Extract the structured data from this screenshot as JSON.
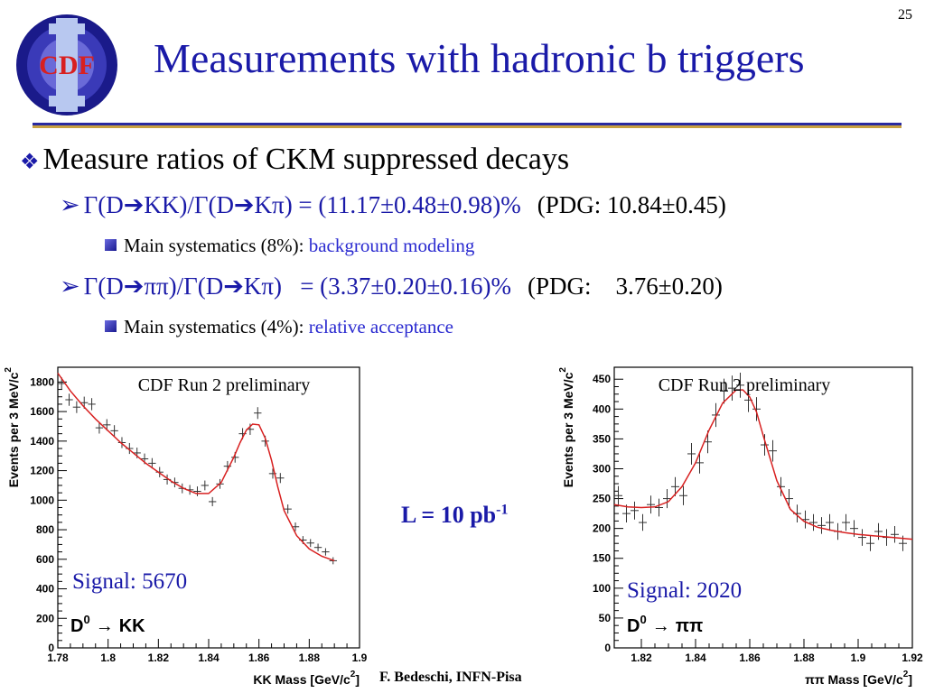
{
  "slide": {
    "page_number": "25",
    "logo_text": "CDF",
    "title": "Measurements with hadronic b triggers",
    "bullet": "Measure ratios of CKM suppressed decays",
    "items": [
      {
        "formula": "Γ(D➔KK)/Γ(D➔Kπ) = (11.17±0.48±0.98)%",
        "pdg": "(PDG: 10.84±0.45)",
        "systematics_label": "Main systematics (8%):",
        "systematics_value": "background modeling"
      },
      {
        "formula": "Γ(D➔ππ)/Γ(D➔Kπ)   = (3.37±0.20±0.16)%",
        "pdg": "(PDG:    3.76±0.20)",
        "systematics_label": "Main systematics (4%):",
        "systematics_value": "relative acceptance"
      }
    ],
    "luminosity": "L = 10 pb",
    "luminosity_exp": "-1",
    "author": "F. Bedeschi, INFN-Pisa"
  },
  "colors": {
    "title_blue": "#1a1aa8",
    "fit_red": "#d82020",
    "highlight_blue": "#2a2ad0"
  },
  "chart_data": [
    {
      "type": "scatter",
      "title": "CDF Run 2 preliminary",
      "xlabel": "KK Mass [GeV/c",
      "xlabel_exp": "2",
      "xlabel_end": "]",
      "ylabel": "Events per 3 MeV/c",
      "ylabel_exp": "2",
      "xlim": [
        1.78,
        1.9
      ],
      "ylim": [
        0,
        1900
      ],
      "xticks": [
        1.78,
        1.8,
        1.82,
        1.84,
        1.86,
        1.88,
        1.9
      ],
      "xtick_labels": [
        "1.78",
        "1.8",
        "1.82",
        "1.84",
        "1.86",
        "1.88",
        "1.9"
      ],
      "yticks": [
        0,
        200,
        400,
        600,
        800,
        1000,
        1200,
        1400,
        1600,
        1800
      ],
      "ytick_labels": [
        "0",
        "200",
        "400",
        "600",
        "800",
        "1000",
        "1200",
        "1400",
        "1600",
        "1800"
      ],
      "signal": "Signal: 5670",
      "decay_particle": "D",
      "decay_sup": "0",
      "decay_arrow": "→",
      "decay_products": "KK",
      "series": [
        {
          "x": [
            1.7815,
            1.7845,
            1.7875,
            1.7905,
            1.7935,
            1.7965,
            1.7995,
            1.8025,
            1.8055,
            1.8085,
            1.8115,
            1.8145,
            1.8175,
            1.8205,
            1.8235,
            1.8265,
            1.8295,
            1.8325,
            1.8355,
            1.8385,
            1.8415,
            1.8445,
            1.8475,
            1.8505,
            1.8535,
            1.8565,
            1.8595,
            1.8625,
            1.8655,
            1.8685,
            1.8715,
            1.8745,
            1.8775,
            1.8805,
            1.8835,
            1.8865,
            1.8895
          ],
          "y": [
            1790,
            1680,
            1630,
            1660,
            1650,
            1490,
            1510,
            1470,
            1390,
            1350,
            1320,
            1280,
            1250,
            1190,
            1140,
            1120,
            1080,
            1070,
            1060,
            1100,
            990,
            1110,
            1230,
            1290,
            1450,
            1480,
            1590,
            1400,
            1180,
            1150,
            940,
            820,
            730,
            710,
            680,
            650,
            590
          ],
          "err": [
            42,
            41,
            40,
            41,
            41,
            39,
            39,
            38,
            37,
            37,
            36,
            36,
            35,
            35,
            34,
            33,
            33,
            33,
            33,
            33,
            31,
            33,
            35,
            36,
            38,
            38,
            40,
            37,
            34,
            34,
            31,
            29,
            27,
            27,
            26,
            25,
            24
          ]
        },
        {
          "name": "fit",
          "x": [
            1.78,
            1.785,
            1.79,
            1.795,
            1.8,
            1.805,
            1.81,
            1.815,
            1.82,
            1.825,
            1.83,
            1.835,
            1.84,
            1.845,
            1.85,
            1.8525,
            1.855,
            1.8575,
            1.86,
            1.8625,
            1.865,
            1.8675,
            1.87,
            1.875,
            1.88,
            1.885,
            1.89
          ],
          "y": [
            1860,
            1740,
            1640,
            1550,
            1470,
            1390,
            1320,
            1250,
            1190,
            1130,
            1080,
            1045,
            1045,
            1120,
            1290,
            1390,
            1475,
            1515,
            1510,
            1420,
            1270,
            1090,
            930,
            760,
            670,
            620,
            590
          ]
        }
      ]
    },
    {
      "type": "scatter",
      "title": "CDF Run 2 preliminary",
      "xlabel": "ππ Mass [GeV/c",
      "xlabel_exp": "2",
      "xlabel_end": "]",
      "ylabel": "Events per 3 MeV/c",
      "ylabel_exp": "2",
      "xlim": [
        1.81,
        1.92
      ],
      "ylim": [
        0,
        470
      ],
      "xticks": [
        1.82,
        1.84,
        1.86,
        1.88,
        1.9,
        1.92
      ],
      "xtick_labels": [
        "1.82",
        "1.84",
        "1.86",
        "1.88",
        "1.9",
        "1.92"
      ],
      "yticks": [
        0,
        50,
        100,
        150,
        200,
        250,
        300,
        350,
        400,
        450
      ],
      "ytick_labels": [
        "0",
        "50",
        "100",
        "150",
        "200",
        "250",
        "300",
        "350",
        "400",
        "450"
      ],
      "signal": "Signal: 2020",
      "decay_particle": "D",
      "decay_sup": "0",
      "decay_arrow": "→",
      "decay_products": "ππ",
      "series": [
        {
          "x": [
            1.8115,
            1.8145,
            1.8175,
            1.8205,
            1.8235,
            1.8265,
            1.8295,
            1.8325,
            1.8355,
            1.8385,
            1.8415,
            1.8445,
            1.8475,
            1.8505,
            1.8535,
            1.8565,
            1.8595,
            1.8625,
            1.8655,
            1.8685,
            1.8715,
            1.8745,
            1.8775,
            1.8805,
            1.8835,
            1.8865,
            1.8895,
            1.8925,
            1.8955,
            1.8985,
            1.9015,
            1.9045,
            1.9075,
            1.9105,
            1.9135,
            1.9165
          ],
          "y": [
            255,
            225,
            230,
            210,
            240,
            235,
            250,
            270,
            255,
            325,
            310,
            345,
            390,
            430,
            435,
            440,
            415,
            400,
            340,
            330,
            270,
            250,
            225,
            215,
            210,
            205,
            210,
            195,
            210,
            200,
            185,
            175,
            195,
            185,
            190,
            175
          ],
          "err": [
            16,
            15,
            15,
            14,
            15,
            15,
            16,
            16,
            16,
            18,
            18,
            19,
            20,
            21,
            21,
            21,
            20,
            20,
            18,
            18,
            16,
            16,
            15,
            15,
            14,
            14,
            14,
            14,
            14,
            14,
            14,
            13,
            14,
            14,
            14,
            13
          ]
        },
        {
          "name": "fit",
          "x": [
            1.81,
            1.815,
            1.82,
            1.825,
            1.83,
            1.835,
            1.84,
            1.845,
            1.85,
            1.855,
            1.8575,
            1.86,
            1.8625,
            1.865,
            1.87,
            1.875,
            1.88,
            1.885,
            1.89,
            1.895,
            1.9,
            1.905,
            1.91,
            1.915,
            1.92
          ],
          "y": [
            240,
            236,
            235,
            236,
            245,
            270,
            310,
            365,
            410,
            432,
            432,
            420,
            395,
            355,
            280,
            232,
            212,
            202,
            197,
            193,
            190,
            188,
            186,
            184,
            182
          ]
        }
      ]
    }
  ]
}
